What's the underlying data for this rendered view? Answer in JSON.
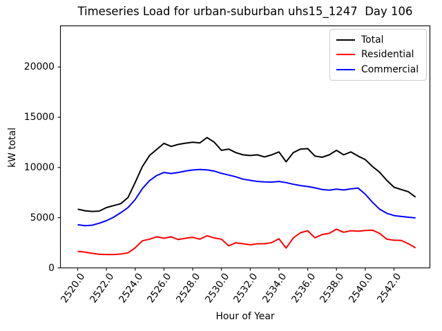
{
  "chart_data": {
    "type": "line",
    "title": "Timeseries Load for urban-suburban uhs15_1247  Day 106",
    "xlabel": "Hour of Year",
    "ylabel": "kW total",
    "grid": false,
    "legend_position": "top-right",
    "xlim": [
      2518.8,
      2544.5
    ],
    "ylim": [
      0,
      24100
    ],
    "xticks": [
      2520,
      2522,
      2524,
      2526,
      2528,
      2530,
      2532,
      2534,
      2536,
      2538,
      2540,
      2542
    ],
    "xtick_labels": [
      "2520.0",
      "2522.0",
      "2524.0",
      "2526.0",
      "2528.0",
      "2530.0",
      "2532.0",
      "2534.0",
      "2536.0",
      "2538.0",
      "2540.0",
      "2542.0"
    ],
    "yticks": [
      0,
      5000,
      10000,
      15000,
      20000
    ],
    "ytick_labels": [
      "0",
      "5000",
      "10000",
      "15000",
      "20000"
    ],
    "x": [
      2520.0,
      2520.5,
      2521.0,
      2521.5,
      2522.0,
      2522.5,
      2523.0,
      2523.5,
      2524.0,
      2524.5,
      2525.0,
      2525.5,
      2526.0,
      2526.5,
      2527.0,
      2527.5,
      2528.0,
      2528.5,
      2529.0,
      2529.5,
      2530.0,
      2530.5,
      2531.0,
      2531.5,
      2532.0,
      2532.5,
      2533.0,
      2533.5,
      2534.0,
      2534.5,
      2535.0,
      2535.5,
      2536.0,
      2536.5,
      2537.0,
      2537.5,
      2538.0,
      2538.5,
      2539.0,
      2539.5,
      2540.0,
      2540.5,
      2541.0,
      2541.5,
      2542.0,
      2542.5,
      2543.0,
      2543.5
    ],
    "series": [
      {
        "name": "Total",
        "color": "#000000",
        "values": [
          5850,
          5690,
          5620,
          5660,
          6010,
          6200,
          6400,
          7000,
          8500,
          10100,
          11200,
          11800,
          12400,
          12100,
          12300,
          12420,
          12520,
          12450,
          12980,
          12520,
          11710,
          11830,
          11480,
          11260,
          11190,
          11260,
          11050,
          11260,
          11550,
          10570,
          11480,
          11830,
          11880,
          11140,
          11020,
          11260,
          11710,
          11260,
          11550,
          11140,
          10790,
          10100,
          9530,
          8720,
          8030,
          7810,
          7580,
          7050
        ]
      },
      {
        "name": "Residential",
        "color": "#ff0000",
        "values": [
          1650,
          1570,
          1450,
          1360,
          1330,
          1330,
          1380,
          1500,
          2000,
          2700,
          2860,
          3100,
          2950,
          3100,
          2820,
          2950,
          3050,
          2860,
          3200,
          2980,
          2860,
          2200,
          2500,
          2400,
          2300,
          2400,
          2400,
          2520,
          2900,
          1980,
          2980,
          3500,
          3700,
          3000,
          3320,
          3440,
          3850,
          3550,
          3700,
          3650,
          3720,
          3760,
          3440,
          2860,
          2750,
          2740,
          2400,
          2000
        ]
      },
      {
        "name": "Commercial",
        "color": "#0000ff",
        "values": [
          4300,
          4200,
          4250,
          4450,
          4700,
          5050,
          5500,
          6000,
          6800,
          7900,
          8700,
          9200,
          9500,
          9400,
          9500,
          9650,
          9750,
          9800,
          9760,
          9640,
          9410,
          9250,
          9070,
          8840,
          8720,
          8610,
          8560,
          8540,
          8610,
          8490,
          8330,
          8200,
          8100,
          7970,
          7810,
          7740,
          7850,
          7760,
          7870,
          7950,
          7350,
          6540,
          5850,
          5440,
          5210,
          5120,
          5050,
          4980
        ]
      }
    ]
  }
}
